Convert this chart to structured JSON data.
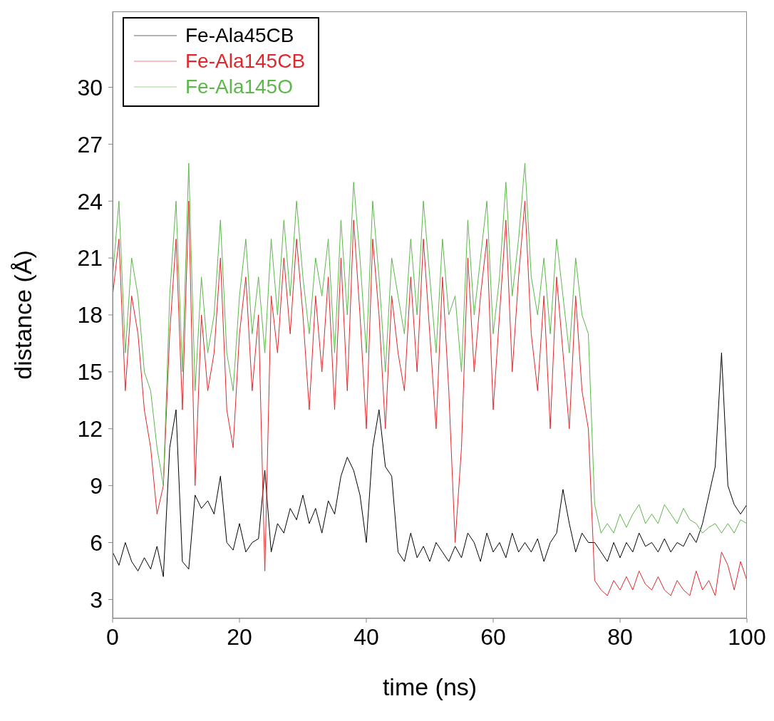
{
  "chart_data": {
    "type": "line",
    "xlabel": "time (ns)",
    "ylabel": "distance (Å)",
    "x": [
      0,
      1,
      2,
      3,
      4,
      5,
      6,
      7,
      8,
      9,
      10,
      11,
      12,
      13,
      14,
      15,
      16,
      17,
      18,
      19,
      20,
      21,
      22,
      23,
      24,
      25,
      26,
      27,
      28,
      29,
      30,
      31,
      32,
      33,
      34,
      35,
      36,
      37,
      38,
      39,
      40,
      41,
      42,
      43,
      44,
      45,
      46,
      47,
      48,
      49,
      50,
      51,
      52,
      53,
      54,
      55,
      56,
      57,
      58,
      59,
      60,
      61,
      62,
      63,
      64,
      65,
      66,
      67,
      68,
      69,
      70,
      71,
      72,
      73,
      74,
      75,
      76,
      77,
      78,
      79,
      80,
      81,
      82,
      83,
      84,
      85,
      86,
      87,
      88,
      89,
      90,
      91,
      92,
      93,
      94,
      95,
      96,
      97,
      98,
      99,
      100
    ],
    "series": [
      {
        "name": "Fe-Ala45CB",
        "color": "#000000",
        "values": [
          5.5,
          4.8,
          6,
          5,
          4.5,
          5.2,
          4.6,
          5.8,
          4.2,
          11,
          13,
          5,
          4.6,
          8.5,
          7.8,
          8.2,
          7.5,
          9.5,
          6,
          5.6,
          7,
          5.5,
          6,
          6.2,
          9.8,
          5.5,
          7,
          6.5,
          7.8,
          7.2,
          8.5,
          7,
          7.8,
          6.5,
          8.2,
          7.5,
          9.5,
          10.5,
          9.8,
          8.5,
          6,
          11,
          13,
          10,
          9.5,
          5.5,
          5,
          6.5,
          5.2,
          5.8,
          5,
          6,
          5.5,
          5,
          5.8,
          5.2,
          6.5,
          6,
          5,
          6.5,
          5.5,
          6,
          5.2,
          6.5,
          5.5,
          6,
          5.5,
          6.2,
          5,
          6,
          6.5,
          8.8,
          7,
          5.5,
          6.5,
          6,
          6,
          5.5,
          5,
          6,
          5.2,
          6,
          5.5,
          6.5,
          5.8,
          6,
          5.5,
          6.2,
          5.5,
          6,
          5.8,
          6.5,
          6,
          7,
          8.5,
          10,
          16,
          9,
          8,
          7.5,
          8
        ]
      },
      {
        "name": "Fe-Ala145CB",
        "color": "#e0282c",
        "values": [
          19,
          22,
          14,
          19,
          17,
          13,
          11,
          7.5,
          9,
          17,
          22,
          13,
          24,
          9,
          18,
          14,
          16,
          21,
          13,
          11,
          17,
          20,
          14,
          18,
          4.5,
          19,
          16,
          21,
          17,
          22,
          18,
          13,
          19,
          15,
          20,
          13,
          21,
          14,
          23,
          18,
          12,
          22,
          18,
          12,
          19,
          16,
          14,
          20,
          15,
          22,
          17,
          12,
          20,
          14,
          6,
          11,
          21,
          15,
          19,
          22,
          13,
          18,
          23,
          15,
          20,
          24,
          17,
          14,
          19,
          12,
          20,
          16,
          12,
          19,
          14,
          12,
          4,
          3.5,
          3.2,
          4,
          3.5,
          4.2,
          3.5,
          4.5,
          3.8,
          3.5,
          4.2,
          3.5,
          3.2,
          4,
          3.5,
          3.2,
          4.5,
          3.5,
          4,
          3.2,
          5.5,
          4.8,
          3.5,
          5,
          4
        ]
      },
      {
        "name": "Fe-Ala145O",
        "color": "#5cb84a",
        "values": [
          20,
          24,
          16,
          21,
          19,
          15,
          14,
          11,
          9,
          19,
          24,
          15,
          26,
          14,
          20,
          16,
          18,
          23,
          16,
          14,
          19,
          22,
          17,
          20,
          16,
          22,
          18,
          23,
          19,
          24,
          20,
          17,
          21,
          19,
          22,
          16,
          23,
          18,
          25,
          21,
          16,
          24,
          20,
          15,
          21,
          19,
          17,
          22,
          18,
          24,
          20,
          16,
          22,
          18,
          19,
          15,
          23,
          18,
          21,
          24,
          17,
          20,
          25,
          19,
          22,
          26,
          20,
          18,
          21,
          17,
          22,
          19,
          16,
          21,
          18,
          17,
          8,
          6.5,
          7,
          6.5,
          7.5,
          6.8,
          7.5,
          8,
          7,
          7.5,
          7,
          8,
          7.5,
          7,
          7.8,
          7.2,
          7,
          6.5,
          6.8,
          7,
          6.5,
          7,
          6.5,
          7.2,
          7
        ]
      }
    ],
    "xlim": [
      0,
      100
    ],
    "xticks": [
      0,
      20,
      40,
      60,
      80,
      100
    ],
    "ylim": [
      2,
      34
    ],
    "yticks": [
      3,
      6,
      9,
      12,
      15,
      18,
      21,
      24,
      27,
      30
    ],
    "grid": false,
    "legend": "top left",
    "marker": "none",
    "line_style": "solid"
  }
}
